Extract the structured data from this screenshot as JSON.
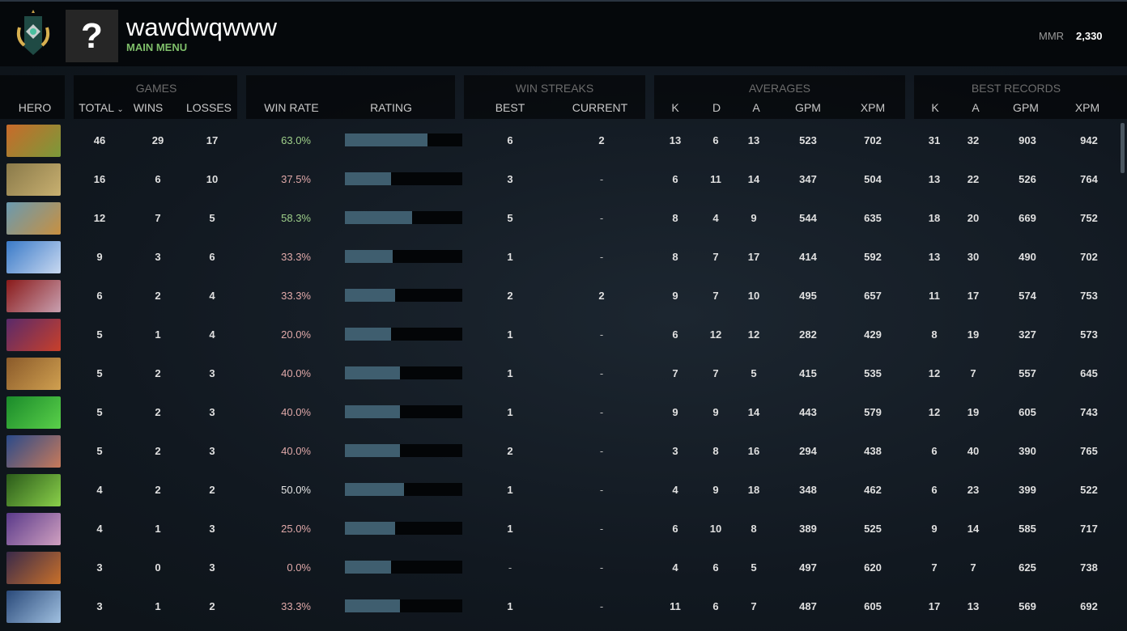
{
  "header": {
    "username": "wawdwqwww",
    "subtitle": "MAIN MENU",
    "avatar_glyph": "?",
    "mmr_label": "MMR",
    "mmr_value": "2,330"
  },
  "groups": {
    "games": "GAMES",
    "win_streaks": "WIN STREAKS",
    "averages": "AVERAGES",
    "best_records": "BEST RECORDS"
  },
  "columns": {
    "hero": "HERO",
    "total": "TOTAL",
    "sort_icon": "chevron-down-icon",
    "wins": "WINS",
    "losses": "LOSSES",
    "win_rate": "WIN RATE",
    "rating": "RATING",
    "best": "BEST",
    "current": "CURRENT",
    "k": "K",
    "d": "D",
    "a": "A",
    "gpm": "GPM",
    "xpm": "XPM",
    "best_k": "K",
    "best_a": "A",
    "best_gpm": "GPM",
    "best_xpm": "XPM"
  },
  "colors": {
    "win_rate_high": "#9fd08a",
    "win_rate_low": "#e0a9a9",
    "win_rate_even": "#e8e8e8",
    "rating_fill": "#3f5e6f",
    "accent_green": "#7fbf6a"
  },
  "rows": [
    {
      "hero_colors": [
        "#c96a2a",
        "#7a9a3a"
      ],
      "total": "46",
      "wins": "29",
      "losses": "17",
      "win_rate": "63.0%",
      "rating": 0.7,
      "best": "6",
      "current": "2",
      "k": "13",
      "d": "6",
      "a": "13",
      "gpm": "523",
      "xpm": "702",
      "bk": "31",
      "ba": "32",
      "bgpm": "903",
      "bxpm": "942"
    },
    {
      "hero_colors": [
        "#8a7a4a",
        "#c8b070"
      ],
      "total": "16",
      "wins": "6",
      "losses": "10",
      "win_rate": "37.5%",
      "rating": 0.39,
      "best": "3",
      "current": "-",
      "k": "6",
      "d": "11",
      "a": "14",
      "gpm": "347",
      "xpm": "504",
      "bk": "13",
      "ba": "22",
      "bgpm": "526",
      "bxpm": "764"
    },
    {
      "hero_colors": [
        "#6a9ab0",
        "#c89040"
      ],
      "total": "12",
      "wins": "7",
      "losses": "5",
      "win_rate": "58.3%",
      "rating": 0.57,
      "best": "5",
      "current": "-",
      "k": "8",
      "d": "4",
      "a": "9",
      "gpm": "544",
      "xpm": "635",
      "bk": "18",
      "ba": "20",
      "bgpm": "669",
      "bxpm": "752"
    },
    {
      "hero_colors": [
        "#3a7ac8",
        "#c8d8f0"
      ],
      "total": "9",
      "wins": "3",
      "losses": "6",
      "win_rate": "33.3%",
      "rating": 0.41,
      "best": "1",
      "current": "-",
      "k": "8",
      "d": "7",
      "a": "17",
      "gpm": "414",
      "xpm": "592",
      "bk": "13",
      "ba": "30",
      "bgpm": "490",
      "bxpm": "702"
    },
    {
      "hero_colors": [
        "#8a1a1a",
        "#c8a0b0"
      ],
      "total": "6",
      "wins": "2",
      "losses": "4",
      "win_rate": "33.3%",
      "rating": 0.43,
      "best": "2",
      "current": "2",
      "k": "9",
      "d": "7",
      "a": "10",
      "gpm": "495",
      "xpm": "657",
      "bk": "11",
      "ba": "17",
      "bgpm": "574",
      "bxpm": "753"
    },
    {
      "hero_colors": [
        "#5a2a6a",
        "#c8402a"
      ],
      "total": "5",
      "wins": "1",
      "losses": "4",
      "win_rate": "20.0%",
      "rating": 0.39,
      "best": "1",
      "current": "-",
      "k": "6",
      "d": "12",
      "a": "12",
      "gpm": "282",
      "xpm": "429",
      "bk": "8",
      "ba": "19",
      "bgpm": "327",
      "bxpm": "573"
    },
    {
      "hero_colors": [
        "#8a5a2a",
        "#d0a050"
      ],
      "total": "5",
      "wins": "2",
      "losses": "3",
      "win_rate": "40.0%",
      "rating": 0.47,
      "best": "1",
      "current": "-",
      "k": "7",
      "d": "7",
      "a": "5",
      "gpm": "415",
      "xpm": "535",
      "bk": "12",
      "ba": "7",
      "bgpm": "557",
      "bxpm": "645"
    },
    {
      "hero_colors": [
        "#1a8a2a",
        "#5ad04a"
      ],
      "total": "5",
      "wins": "2",
      "losses": "3",
      "win_rate": "40.0%",
      "rating": 0.47,
      "best": "1",
      "current": "-",
      "k": "9",
      "d": "9",
      "a": "14",
      "gpm": "443",
      "xpm": "579",
      "bk": "12",
      "ba": "19",
      "bgpm": "605",
      "bxpm": "743"
    },
    {
      "hero_colors": [
        "#2a4a8a",
        "#c87a5a"
      ],
      "total": "5",
      "wins": "2",
      "losses": "3",
      "win_rate": "40.0%",
      "rating": 0.47,
      "best": "2",
      "current": "-",
      "k": "3",
      "d": "8",
      "a": "16",
      "gpm": "294",
      "xpm": "438",
      "bk": "6",
      "ba": "40",
      "bgpm": "390",
      "bxpm": "765"
    },
    {
      "hero_colors": [
        "#2a5a1a",
        "#8ad04a"
      ],
      "total": "4",
      "wins": "2",
      "losses": "2",
      "win_rate": "50.0%",
      "rating": 0.5,
      "best": "1",
      "current": "-",
      "k": "4",
      "d": "9",
      "a": "18",
      "gpm": "348",
      "xpm": "462",
      "bk": "6",
      "ba": "23",
      "bgpm": "399",
      "bxpm": "522"
    },
    {
      "hero_colors": [
        "#5a3a8a",
        "#d0a0c0"
      ],
      "total": "4",
      "wins": "1",
      "losses": "3",
      "win_rate": "25.0%",
      "rating": 0.43,
      "best": "1",
      "current": "-",
      "k": "6",
      "d": "10",
      "a": "8",
      "gpm": "389",
      "xpm": "525",
      "bk": "9",
      "ba": "14",
      "bgpm": "585",
      "bxpm": "717"
    },
    {
      "hero_colors": [
        "#3a2a4a",
        "#c8702a"
      ],
      "total": "3",
      "wins": "0",
      "losses": "3",
      "win_rate": "0.0%",
      "rating": 0.39,
      "best": "-",
      "current": "-",
      "k": "4",
      "d": "6",
      "a": "5",
      "gpm": "497",
      "xpm": "620",
      "bk": "7",
      "ba": "7",
      "bgpm": "625",
      "bxpm": "738"
    },
    {
      "hero_colors": [
        "#2a4a7a",
        "#a0c0e0"
      ],
      "total": "3",
      "wins": "1",
      "losses": "2",
      "win_rate": "33.3%",
      "rating": 0.47,
      "best": "1",
      "current": "-",
      "k": "11",
      "d": "6",
      "a": "7",
      "gpm": "487",
      "xpm": "605",
      "bk": "17",
      "ba": "13",
      "bgpm": "569",
      "bxpm": "692"
    }
  ]
}
